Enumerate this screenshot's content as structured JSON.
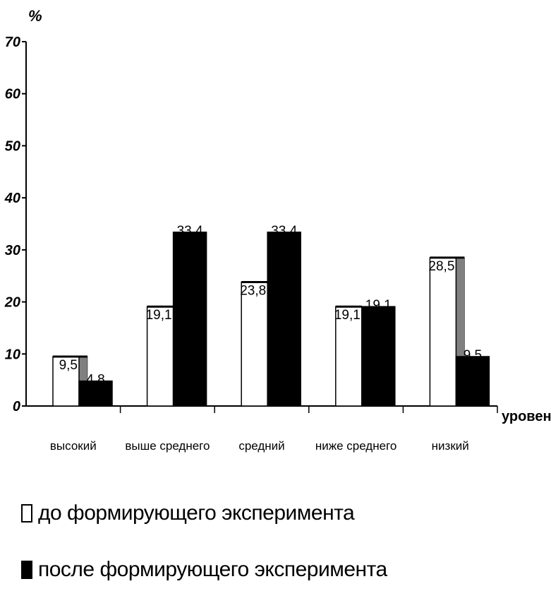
{
  "chart_data": {
    "type": "bar",
    "ylabel": "%",
    "xlabel": "уровень",
    "ylim": [
      0,
      70
    ],
    "yticks": [
      0,
      10,
      20,
      30,
      40,
      50,
      60,
      70
    ],
    "categories": [
      "высокий",
      "выше среднего",
      "средний",
      "ниже среднего",
      "низкий"
    ],
    "series": [
      {
        "name": "до формирующего эксперимента",
        "color": "#ffffff",
        "values": [
          9.5,
          19.1,
          23.8,
          19.1,
          28.5
        ],
        "labels": [
          "9,5",
          "19,1",
          "23,8",
          "19,1",
          "28,5"
        ]
      },
      {
        "name": "после формирующего эксперимента",
        "color": "#000000",
        "values": [
          4.8,
          33.4,
          33.4,
          19.1,
          9.5
        ],
        "labels": [
          "4,8",
          "33,4",
          "33,4",
          "19,1",
          "9,5"
        ]
      }
    ],
    "grid": false,
    "legend_position": "bottom"
  }
}
